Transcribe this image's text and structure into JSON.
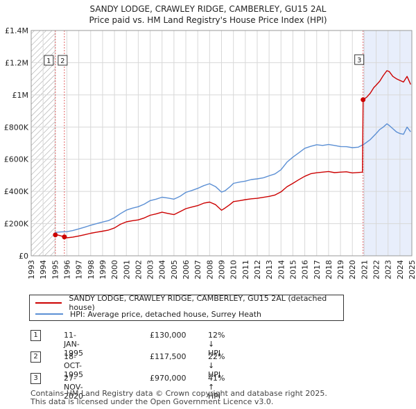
{
  "title_line1": "SANDY LODGE, CRAWLEY RIDGE, CAMBERLEY, GU15 2AL",
  "title_line2": "Price paid vs. HM Land Registry's House Price Index (HPI)",
  "chart_data": {
    "type": "line",
    "title": "SANDY LODGE, CRAWLEY RIDGE, CAMBERLEY, GU15 2AL — Price paid vs. HM Land Registry's House Price Index (HPI)",
    "xlim": [
      1993,
      2025
    ],
    "ylim": [
      0,
      1400000
    ],
    "x_ticks": [
      "1993",
      "1994",
      "1995",
      "1996",
      "1997",
      "1998",
      "1999",
      "2000",
      "2001",
      "2002",
      "2003",
      "2004",
      "2005",
      "2006",
      "2007",
      "2008",
      "2009",
      "2010",
      "2011",
      "2012",
      "2013",
      "2014",
      "2015",
      "2016",
      "2017",
      "2018",
      "2019",
      "2020",
      "2021",
      "2022",
      "2023",
      "2024",
      "2025"
    ],
    "y_ticks": [
      {
        "value": 0,
        "label": "£0"
      },
      {
        "value": 200000,
        "label": "£200K"
      },
      {
        "value": 400000,
        "label": "£400K"
      },
      {
        "value": 600000,
        "label": "£600K"
      },
      {
        "value": 800000,
        "label": "£800K"
      },
      {
        "value": 1000000,
        "label": "£1M"
      },
      {
        "value": 1200000,
        "label": "£1.2M"
      },
      {
        "value": 1400000,
        "label": "£1.4M"
      }
    ],
    "grid": true,
    "shaded_regions": [
      {
        "kind": "hatched",
        "from": 1993,
        "to": 1995.03
      },
      {
        "kind": "tinted",
        "from": 2020.9,
        "to": 2025
      }
    ],
    "series": [
      {
        "name": "SANDY LODGE, CRAWLEY RIDGE, CAMBERLEY, GU15 2AL (detached house)",
        "color": "#cc0000",
        "x": [
          1995.03,
          1995.3,
          1995.79,
          1996.0,
          1996.5,
          1997.0,
          1997.5,
          1998.0,
          1998.5,
          1999.0,
          1999.5,
          2000.0,
          2000.5,
          2001.0,
          2001.5,
          2002.0,
          2002.5,
          2003.0,
          2003.5,
          2004.0,
          2004.5,
          2005.0,
          2005.5,
          2006.0,
          2006.5,
          2007.0,
          2007.5,
          2008.0,
          2008.5,
          2009.0,
          2009.3,
          2009.7,
          2010.0,
          2010.5,
          2011.0,
          2011.5,
          2012.0,
          2012.5,
          2013.0,
          2013.5,
          2014.0,
          2014.5,
          2015.0,
          2015.5,
          2016.0,
          2016.5,
          2017.0,
          2017.5,
          2018.0,
          2018.5,
          2019.0,
          2019.5,
          2020.0,
          2020.5,
          2020.85,
          2020.9,
          2021.2,
          2021.5,
          2021.8,
          2022.0,
          2022.3,
          2022.6,
          2022.9,
          2023.1,
          2023.4,
          2023.7,
          2024.0,
          2024.3,
          2024.6,
          2024.9
        ],
        "values": [
          130000,
          128000,
          117500,
          112000,
          116000,
          123000,
          131000,
          140000,
          147000,
          153000,
          160000,
          173000,
          196000,
          211000,
          218000,
          223000,
          235000,
          252000,
          260000,
          271000,
          263000,
          256000,
          274000,
          293000,
          303000,
          312000,
          327000,
          334000,
          318000,
          283000,
          297000,
          318000,
          337000,
          342000,
          349000,
          354000,
          357000,
          363000,
          369000,
          378000,
          397000,
          429000,
          450000,
          473000,
          494000,
          510000,
          516000,
          520000,
          524000,
          517000,
          520000,
          522000,
          515000,
          518000,
          520000,
          970000,
          985000,
          1010000,
          1045000,
          1060000,
          1085000,
          1120000,
          1150000,
          1145000,
          1115000,
          1100000,
          1090000,
          1080000,
          1115000,
          1065000
        ]
      },
      {
        "name": "HPI: Average price, detached house, Surrey Heath",
        "color": "#5b8fd4",
        "x": [
          1995.0,
          1995.5,
          1996.0,
          1996.5,
          1997.0,
          1997.5,
          1998.0,
          1998.5,
          1999.0,
          1999.5,
          2000.0,
          2000.5,
          2001.0,
          2001.5,
          2002.0,
          2002.5,
          2003.0,
          2003.5,
          2004.0,
          2004.5,
          2005.0,
          2005.5,
          2006.0,
          2006.5,
          2007.0,
          2007.5,
          2008.0,
          2008.5,
          2009.0,
          2009.3,
          2009.7,
          2010.0,
          2010.5,
          2011.0,
          2011.5,
          2012.0,
          2012.5,
          2013.0,
          2013.5,
          2014.0,
          2014.5,
          2015.0,
          2015.5,
          2016.0,
          2016.5,
          2017.0,
          2017.5,
          2018.0,
          2018.5,
          2019.0,
          2019.5,
          2020.0,
          2020.5,
          2021.0,
          2021.5,
          2022.0,
          2022.3,
          2022.6,
          2022.9,
          2023.1,
          2023.4,
          2023.7,
          2024.0,
          2024.3,
          2024.6,
          2024.9
        ],
        "values": [
          145000,
          148000,
          150000,
          157000,
          167000,
          178000,
          190000,
          200000,
          210000,
          219000,
          237000,
          262000,
          284000,
          296000,
          305000,
          321000,
          343000,
          352000,
          364000,
          359000,
          352000,
          369000,
          394000,
          406000,
          419000,
          436000,
          448000,
          430000,
          396000,
          404000,
          428000,
          450000,
          458000,
          464000,
          474000,
          478000,
          484000,
          497000,
          509000,
          535000,
          582000,
          613000,
          640000,
          668000,
          680000,
          690000,
          686000,
          692000,
          686000,
          679000,
          678000,
          672000,
          675000,
          695000,
          722000,
          760000,
          785000,
          800000,
          820000,
          810000,
          790000,
          770000,
          760000,
          755000,
          800000,
          770000
        ]
      }
    ],
    "annotations": [
      {
        "label": "1",
        "x": 1995.03,
        "y": 130000
      },
      {
        "label": "2",
        "x": 1995.79,
        "y": 117500
      },
      {
        "label": "3",
        "x": 2020.9,
        "y": 970000
      }
    ]
  },
  "legend": {
    "property": "SANDY LODGE, CRAWLEY RIDGE, CAMBERLEY, GU15 2AL (detached house)",
    "hpi": "HPI: Average price, detached house, Surrey Heath",
    "property_color": "#cc0000",
    "hpi_color": "#5b8fd4"
  },
  "transactions": [
    {
      "num": "1",
      "date": "11-JAN-1995",
      "price": "£130,000",
      "hpi": "12% ↓ HPI"
    },
    {
      "num": "2",
      "date": "18-OCT-1995",
      "price": "£117,500",
      "hpi": "22% ↓ HPI"
    },
    {
      "num": "3",
      "date": "27-NOV-2020",
      "price": "£970,000",
      "hpi": "41% ↑ HPI"
    }
  ],
  "footer_line1": "Contains HM Land Registry data © Crown copyright and database right 2025.",
  "footer_line2": "This data is licensed under the Open Government Licence v3.0."
}
